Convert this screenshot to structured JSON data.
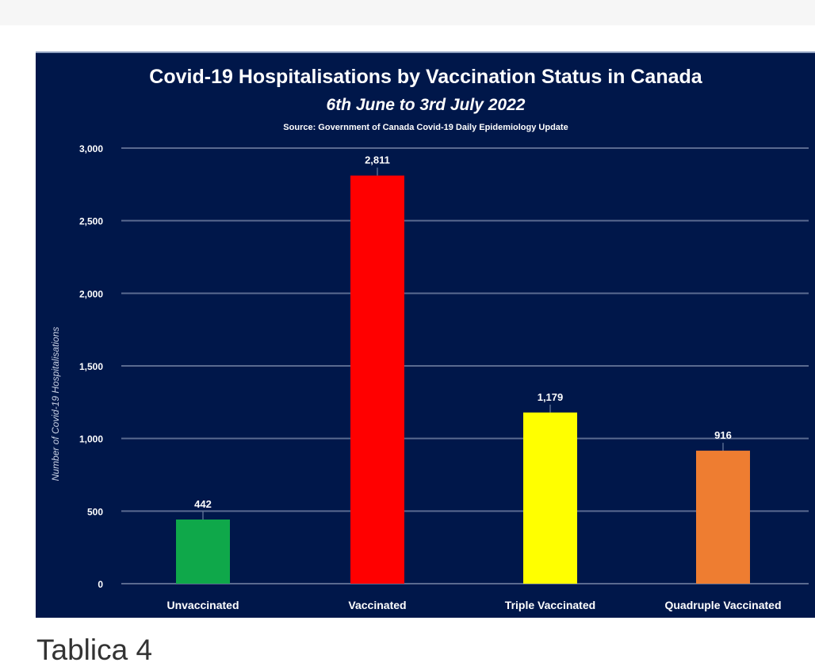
{
  "caption": "Tablica 4",
  "chart_data": {
    "type": "bar",
    "title": "Covid-19 Hospitalisations by Vaccination Status in Canada",
    "subtitle": "6th June to 3rd July 2022",
    "source": "Source: Government of Canada  Covid-19 Daily Epidemiology Update",
    "xlabel": "",
    "ylabel": "Number of Covid-19 Hospitalisations",
    "ylim": [
      0,
      3000
    ],
    "yticks": [
      0,
      500,
      1000,
      1500,
      2000,
      2500,
      3000
    ],
    "ytick_labels": [
      "0",
      "500",
      "1,000",
      "1,500",
      "2,000",
      "2,500",
      "3,000"
    ],
    "categories": [
      "Unvaccinated",
      "Vaccinated",
      "Triple Vaccinated",
      "Quadruple Vaccinated"
    ],
    "values": [
      442,
      2811,
      1179,
      916
    ],
    "value_labels": [
      "442",
      "2,811",
      "1,179",
      "916"
    ],
    "colors": [
      "#0fa84a",
      "#ff0000",
      "#ffff00",
      "#ee7d31"
    ],
    "background": "#00174a",
    "grid": true
  }
}
